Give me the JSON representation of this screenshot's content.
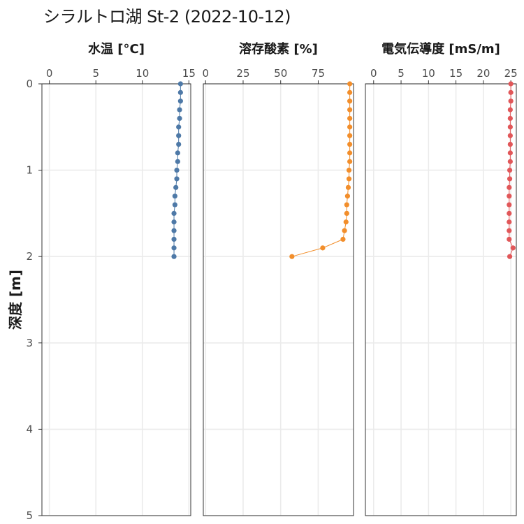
{
  "title": "シラルトロ湖 St-2 (2022-10-12)",
  "chart_data": {
    "type": "scatter",
    "ylabel": "深度 [m]",
    "ylim": [
      0,
      5
    ],
    "ylim_reversed": true,
    "y_ticks": [
      "0",
      "1",
      "2",
      "3",
      "4",
      "5"
    ],
    "y_tick_values": [
      0,
      1,
      2,
      3,
      4,
      5
    ],
    "depth": [
      0.0,
      0.1,
      0.2,
      0.3,
      0.4,
      0.5,
      0.6,
      0.7,
      0.8,
      0.9,
      1.0,
      1.1,
      1.2,
      1.3,
      1.4,
      1.5,
      1.6,
      1.7,
      1.8,
      1.9,
      2.0
    ],
    "grid": true,
    "panels": [
      {
        "title": "水温 [°C]",
        "color": "#4e79a7",
        "xlim": [
          -0.8,
          15.2
        ],
        "x_tick_values": [
          0,
          5,
          10,
          15
        ],
        "x_ticks": [
          "0",
          "5",
          "10",
          "15"
        ],
        "values": [
          14.1,
          14.1,
          14.1,
          14.0,
          14.0,
          13.9,
          13.9,
          13.9,
          13.8,
          13.8,
          13.7,
          13.7,
          13.6,
          13.5,
          13.5,
          13.4,
          13.4,
          13.4,
          13.4,
          13.4,
          13.4
        ]
      },
      {
        "title": "溶存酸素 [%]",
        "color": "#f28e2b",
        "xlim": [
          -1.5,
          98.5
        ],
        "x_tick_values": [
          0,
          25,
          50,
          75
        ],
        "x_ticks": [
          "0",
          "25",
          "50",
          "75"
        ],
        "values": [
          96.0,
          96.0,
          96.0,
          96.0,
          96.0,
          96.0,
          96.0,
          96.0,
          96.0,
          96.0,
          95.5,
          95.5,
          95.0,
          94.5,
          94.0,
          94.0,
          93.5,
          92.5,
          91.5,
          78.0,
          57.5
        ]
      },
      {
        "title": "電気伝導度 [mS/m]",
        "color": "#e15759",
        "xlim": [
          -1.5,
          26.0
        ],
        "x_tick_values": [
          0,
          5,
          10,
          15,
          20,
          25
        ],
        "x_ticks": [
          "0",
          "5",
          "10",
          "15",
          "20",
          "25"
        ],
        "values": [
          25.0,
          25.0,
          25.0,
          24.9,
          24.9,
          24.9,
          24.9,
          24.9,
          24.9,
          24.9,
          24.8,
          24.8,
          24.7,
          24.7,
          24.7,
          24.7,
          24.7,
          24.7,
          24.7,
          25.4,
          24.8
        ]
      }
    ]
  }
}
